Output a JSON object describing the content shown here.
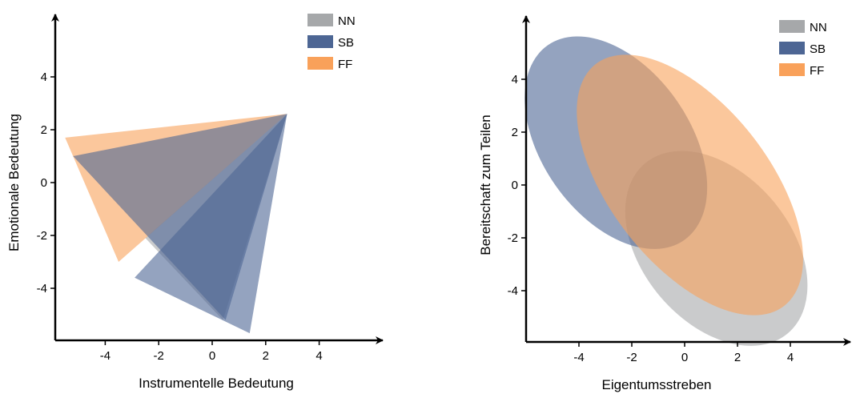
{
  "series_colors": {
    "NN": "#a6a8aa",
    "SB": "#4d6694",
    "FF": "#f9a15a"
  },
  "chart_data": [
    {
      "type": "area",
      "xlabel": "Instrumentelle Bedeutung",
      "ylabel": "Emotionale Bedeutung",
      "xlim": [
        -6,
        6
      ],
      "ylim": [
        -6,
        6
      ],
      "xticks": [
        "-4",
        "-2",
        "0",
        "2",
        "4"
      ],
      "xtick_values": [
        -4,
        -2,
        0,
        2,
        4
      ],
      "yticks": [
        "4",
        "2",
        "0",
        "-2",
        "-4"
      ],
      "ytick_values": [
        4,
        2,
        0,
        -2,
        -4
      ],
      "legend": [
        "NN",
        "SB",
        "FF"
      ],
      "legend_position": "top-right",
      "grid": false,
      "series": [
        {
          "name": "NN",
          "shape": "triangle",
          "points": [
            [
              2.8,
              2.6
            ],
            [
              -2.5,
              -2.1
            ],
            [
              0.4,
              -5.2
            ]
          ]
        },
        {
          "name": "SB",
          "shape": "triangle",
          "points": [
            [
              2.8,
              2.6
            ],
            [
              -2.9,
              -3.6
            ],
            [
              1.4,
              -5.7
            ]
          ]
        },
        {
          "name": "FF",
          "shape": "triangle",
          "points": [
            [
              2.8,
              2.6
            ],
            [
              -5.5,
              1.7
            ],
            [
              -3.5,
              -3.0
            ]
          ]
        },
        {
          "name": "SB",
          "shape": "triangle",
          "points": [
            [
              2.8,
              2.6
            ],
            [
              -5.2,
              1.0
            ],
            [
              0.5,
              -5.2
            ]
          ]
        }
      ]
    },
    {
      "type": "area",
      "xlabel": "Eigentumsstreben",
      "ylabel": "Bereitschaft zum Teilen",
      "xlim": [
        -6,
        6
      ],
      "ylim": [
        -6,
        6
      ],
      "xticks": [
        "-4",
        "-2",
        "0",
        "2",
        "4"
      ],
      "xtick_values": [
        -4,
        -2,
        0,
        2,
        4
      ],
      "yticks": [
        "4",
        "2",
        "0",
        "-2",
        "-4"
      ],
      "ytick_values": [
        4,
        2,
        0,
        -2,
        -4
      ],
      "legend": [
        "NN",
        "SB",
        "FF"
      ],
      "legend_position": "top-right",
      "grid": false,
      "series": [
        {
          "name": "NN",
          "shape": "ellipse",
          "center": [
            1.2,
            -2.4
          ],
          "rx": 2.8,
          "ry": 4.2,
          "rotation_deg": -40
        },
        {
          "name": "SB",
          "shape": "ellipse",
          "center": [
            -2.6,
            1.6
          ],
          "rx": 2.8,
          "ry": 4.5,
          "rotation_deg": -35
        },
        {
          "name": "FF",
          "shape": "ellipse",
          "center": [
            0.2,
            0.0
          ],
          "rx": 3.0,
          "ry": 5.8,
          "rotation_deg": -38
        }
      ]
    }
  ]
}
